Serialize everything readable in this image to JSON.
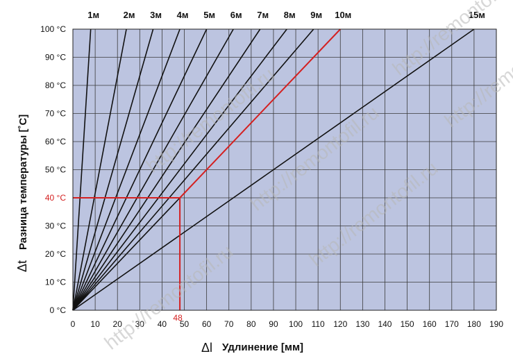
{
  "chart_data": {
    "type": "line",
    "xlabel": "Удлинение [мм]",
    "xlabel_symbol": "Δl",
    "ylabel": "Разница температуры [˚C]",
    "ylabel_symbol": "Δt",
    "xlim": [
      0,
      190
    ],
    "ylim": [
      0,
      100
    ],
    "x_ticks": [
      0,
      10,
      20,
      30,
      40,
      50,
      60,
      70,
      80,
      90,
      100,
      110,
      120,
      130,
      140,
      150,
      160,
      170,
      180,
      190
    ],
    "y_ticks": [
      0,
      10,
      20,
      30,
      40,
      50,
      60,
      70,
      80,
      90,
      100
    ],
    "y_tick_labels": [
      "0 °C",
      "10 °C",
      "20 °C",
      "30 °C",
      "40 °C",
      "50 °C",
      "60 °C",
      "70 °C",
      "80 °C",
      "90 °C",
      "100 °C"
    ],
    "grid": true,
    "background_color": "#bcc4e0",
    "line_color": "#111111",
    "highlight_color": "#d42020",
    "series": [
      {
        "name": "1м",
        "x": [
          0,
          8
        ],
        "y": [
          0,
          100
        ]
      },
      {
        "name": "2м",
        "x": [
          0,
          24
        ],
        "y": [
          0,
          100
        ]
      },
      {
        "name": "3м",
        "x": [
          0,
          36
        ],
        "y": [
          0,
          100
        ]
      },
      {
        "name": "4м",
        "x": [
          0,
          48
        ],
        "y": [
          0,
          100
        ]
      },
      {
        "name": "5м",
        "x": [
          0,
          60
        ],
        "y": [
          0,
          100
        ]
      },
      {
        "name": "6м",
        "x": [
          0,
          72
        ],
        "y": [
          0,
          100
        ]
      },
      {
        "name": "7м",
        "x": [
          0,
          84
        ],
        "y": [
          0,
          100
        ]
      },
      {
        "name": "8м",
        "x": [
          0,
          96
        ],
        "y": [
          0,
          100
        ]
      },
      {
        "name": "9м",
        "x": [
          0,
          108
        ],
        "y": [
          0,
          100
        ]
      },
      {
        "name": "10м",
        "x": [
          0,
          120
        ],
        "y": [
          0,
          100
        ],
        "highlight": true
      },
      {
        "name": "15м",
        "x": [
          0,
          180
        ],
        "y": [
          0,
          100
        ]
      }
    ],
    "annotation": {
      "x": 48,
      "y": 40,
      "x_label": "48",
      "y_label": "40 °C"
    }
  },
  "watermark": "http://remontofil.ru"
}
